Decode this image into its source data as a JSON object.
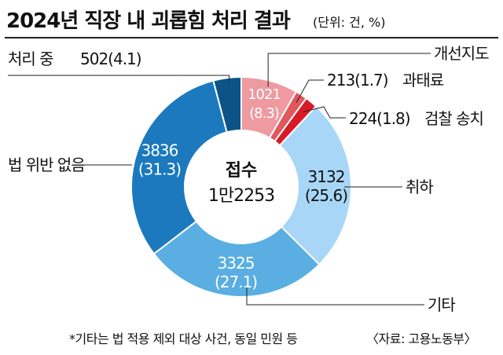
{
  "header": {
    "title": "2024년 직장 내 괴롭힘 처리 결과",
    "unit": "(단위: 건, %)"
  },
  "center": {
    "line1": "접수",
    "line2": "1만2253"
  },
  "footer": {
    "note": "*기타는 법 적용 제외 대상 사건, 동일 민원 등",
    "source": "〈자료: 고용노동부〉"
  },
  "chart_data": {
    "type": "pie",
    "donut": true,
    "total": 12253,
    "title": "2024년 직장 내 괴롭힘 처리 결과",
    "unit": "(단위: 건, %)",
    "legend": "none",
    "grid": false,
    "slices": [
      {
        "key": "correction",
        "label": "개선지도",
        "value": 1021,
        "percent": 8.3,
        "value_text": "1021",
        "percent_text": "(8.3)",
        "color": "#ee9aa0"
      },
      {
        "key": "fine",
        "label": "과태료",
        "value": 213,
        "percent": 1.7,
        "value_text": "213(1.7)",
        "color": "#e0575e"
      },
      {
        "key": "prosecution",
        "label": "검찰 송치",
        "value": 224,
        "percent": 1.8,
        "value_text": "224(1.8)",
        "color": "#d81a26"
      },
      {
        "key": "withdrawal",
        "label": "취하",
        "value": 3132,
        "percent": 25.6,
        "value_text": "3132",
        "percent_text": "(25.6)",
        "color": "#a8d6f6"
      },
      {
        "key": "other",
        "label": "기타",
        "value": 3325,
        "percent": 27.1,
        "value_text": "3325",
        "percent_text": "(27.1)",
        "color": "#5aaee2"
      },
      {
        "key": "no_violation",
        "label": "법 위반 없음",
        "value": 3836,
        "percent": 31.3,
        "value_text": "3836",
        "percent_text": "(31.3)",
        "color": "#1c79bd"
      },
      {
        "key": "processing",
        "label": "처리 중",
        "value": 502,
        "percent": 4.1,
        "value_text": "502(4.1)",
        "color": "#0c5487"
      }
    ]
  }
}
